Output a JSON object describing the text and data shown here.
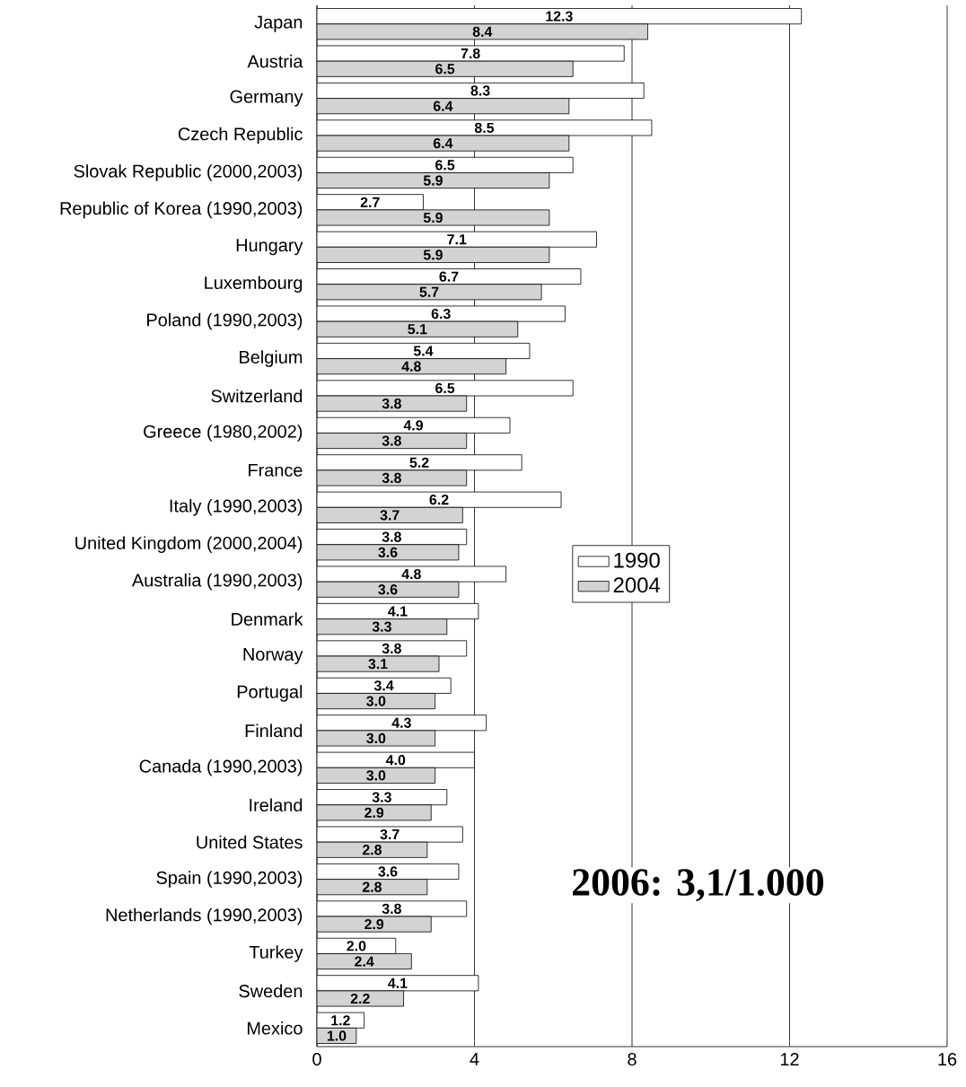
{
  "chart_data": {
    "type": "bar",
    "orientation": "horizontal",
    "categories": [
      "Japan",
      "Austria",
      "Germany",
      "Czech Republic",
      "Slovak Republic (2000,2003)",
      "Republic of Korea (1990,2003)",
      "Hungary",
      "Luxembourg",
      "Poland (1990,2003)",
      "Belgium",
      "Switzerland",
      "Greece (1980,2002)",
      "France",
      "Italy (1990,2003)",
      "United Kingdom (2000,2004)",
      "Australia (1990,2003)",
      "Denmark",
      "Norway",
      "Portugal",
      "Finland",
      "Canada (1990,2003)",
      "Ireland",
      "United States",
      "Spain (1990,2003)",
      "Netherlands (1990,2003)",
      "Turkey",
      "Sweden",
      "Mexico"
    ],
    "series": [
      {
        "name": "1990",
        "color": "#ffffff",
        "values": [
          12.3,
          7.8,
          8.3,
          8.5,
          6.5,
          2.7,
          7.1,
          6.7,
          6.3,
          5.4,
          6.5,
          4.9,
          5.2,
          6.2,
          3.8,
          4.8,
          4.1,
          3.8,
          3.4,
          4.3,
          4.0,
          3.3,
          3.7,
          3.6,
          3.8,
          2.0,
          4.1,
          1.2
        ],
        "value_labels": [
          "12.3",
          "7.8",
          "8.3",
          "8.5",
          "6.5",
          "2.7",
          "7.1",
          "6.7",
          "6.3",
          "5.4",
          "6.5",
          "4.9",
          "5.2",
          "6.2",
          "3.8",
          "4.8",
          "4.1",
          "3.8",
          "3.4",
          "4.3",
          "4.0",
          "3.3",
          "3.7",
          "3.6",
          "3.8",
          "2.0",
          "4.1",
          "1.2"
        ]
      },
      {
        "name": "2004",
        "color": "#d3d3d3",
        "values": [
          8.4,
          6.5,
          6.4,
          6.4,
          5.9,
          5.9,
          5.9,
          5.7,
          5.1,
          4.8,
          3.8,
          3.8,
          3.8,
          3.7,
          3.6,
          3.6,
          3.3,
          3.1,
          3.0,
          3.0,
          3.0,
          2.9,
          2.8,
          2.8,
          2.9,
          2.4,
          2.2,
          1.0
        ],
        "value_labels": [
          "8.4",
          "6.5",
          "6.4",
          "6.4",
          "5.9",
          "5.9",
          "5.9",
          "5.7",
          "5.1",
          "4.8",
          "3.8",
          "3.8",
          "3.8",
          "3.7",
          "3.6",
          "3.6",
          "3.3",
          "3.1",
          "3.0",
          "3.0",
          "3.0",
          "2.9",
          "2.8",
          "2.8",
          "2.9",
          "2.4",
          "2.2",
          "1.0"
        ]
      }
    ],
    "xlim": [
      0,
      16
    ],
    "xticks": [
      0,
      4,
      8,
      12,
      16
    ],
    "grid": "x",
    "legend": "right",
    "annotations": [
      "2006: 3,1/1.000"
    ]
  }
}
